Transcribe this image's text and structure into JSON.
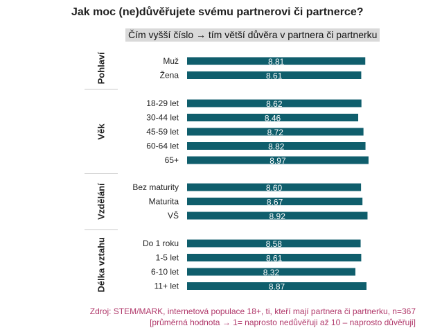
{
  "chart_data": {
    "type": "bar",
    "orientation": "horizontal",
    "title": "Jak moc (ne)důvěřujete svému partnerovi či partnerce?",
    "subtitle": "Čím vyšší číslo → tím větší důvěra v partnera či partnerku",
    "xlim": [
      0,
      10
    ],
    "grid": false,
    "legend": "none",
    "bar_color": "#0f5e6c",
    "groups": [
      {
        "name": "Pohlaví",
        "categories": [
          "Muž",
          "Žena"
        ],
        "values": [
          8.81,
          8.61
        ],
        "labels": [
          "8.81",
          "8.61"
        ]
      },
      {
        "name": "Věk",
        "categories": [
          "18-29 let",
          "30-44 let",
          "45-59 let",
          "60-64 let",
          "65+"
        ],
        "values": [
          8.62,
          8.46,
          8.72,
          8.82,
          8.97
        ],
        "labels": [
          "8.62",
          "8.46",
          "8.72",
          "8.82",
          "8.97"
        ]
      },
      {
        "name": "Vzdělání",
        "categories": [
          "Bez maturity",
          "Maturita",
          "VŠ"
        ],
        "values": [
          8.6,
          8.67,
          8.92
        ],
        "labels": [
          "8.60",
          "8.67",
          "8.92"
        ]
      },
      {
        "name": "Délka vztahu",
        "categories": [
          "Do 1 roku",
          "1-5 let",
          "6-10 let",
          "11+ let"
        ],
        "values": [
          8.58,
          8.61,
          8.32,
          8.87
        ],
        "labels": [
          "8.58",
          "8.61",
          "8.32",
          "8.87"
        ]
      }
    ]
  },
  "footer": {
    "source": "Zdroj: STEM/MARK, internetová populace 18+, ti, kteří mají partnera či partnerku, n=367",
    "note": "[průměrná hodnota → 1= naprosto nedůvěřuji až 10 – naprosto důvěřuji]"
  }
}
